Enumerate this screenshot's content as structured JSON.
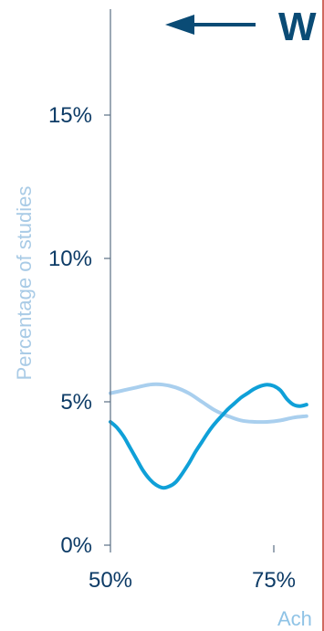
{
  "chart_data": {
    "type": "line",
    "title": "W",
    "xlabel": "Ach",
    "ylabel": "Percentage of studies",
    "xlim": [
      50,
      80
    ],
    "ylim": [
      0,
      19
    ],
    "x_ticks": [
      {
        "value": 50,
        "label": "50%"
      },
      {
        "value": 75,
        "label": "75%"
      }
    ],
    "y_ticks": [
      {
        "value": 0,
        "label": "0%"
      },
      {
        "value": 5,
        "label": "5%"
      },
      {
        "value": 10,
        "label": "10%"
      },
      {
        "value": 15,
        "label": "15%"
      }
    ],
    "series": [
      {
        "color": "#a9cfee",
        "x": [
          50,
          52,
          54,
          56,
          58,
          60,
          62,
          64,
          66,
          68,
          70,
          72,
          74,
          76,
          78,
          80
        ],
        "y": [
          5.3,
          5.4,
          5.5,
          5.6,
          5.6,
          5.5,
          5.3,
          5.0,
          4.7,
          4.5,
          4.35,
          4.3,
          4.3,
          4.35,
          4.45,
          4.5
        ]
      },
      {
        "color": "#0fa0d8",
        "x": [
          50,
          51,
          52,
          53,
          54,
          55,
          56,
          57,
          58,
          59,
          60,
          61,
          62,
          63,
          64,
          65,
          66,
          67,
          68,
          69,
          70,
          71,
          72,
          73,
          74,
          75,
          76,
          77,
          78,
          79,
          80
        ],
        "y": [
          4.3,
          4.1,
          3.8,
          3.4,
          3.0,
          2.6,
          2.3,
          2.1,
          2.0,
          2.05,
          2.2,
          2.5,
          2.85,
          3.25,
          3.6,
          3.95,
          4.25,
          4.5,
          4.75,
          4.95,
          5.15,
          5.3,
          5.45,
          5.55,
          5.6,
          5.55,
          5.4,
          5.1,
          4.9,
          4.85,
          4.9
        ]
      }
    ],
    "annotation": {
      "type": "arrow",
      "direction": "left",
      "color": "#0a4b75"
    },
    "reference_line": {
      "color": "#c0392b"
    },
    "grid": false,
    "legend": "none"
  }
}
